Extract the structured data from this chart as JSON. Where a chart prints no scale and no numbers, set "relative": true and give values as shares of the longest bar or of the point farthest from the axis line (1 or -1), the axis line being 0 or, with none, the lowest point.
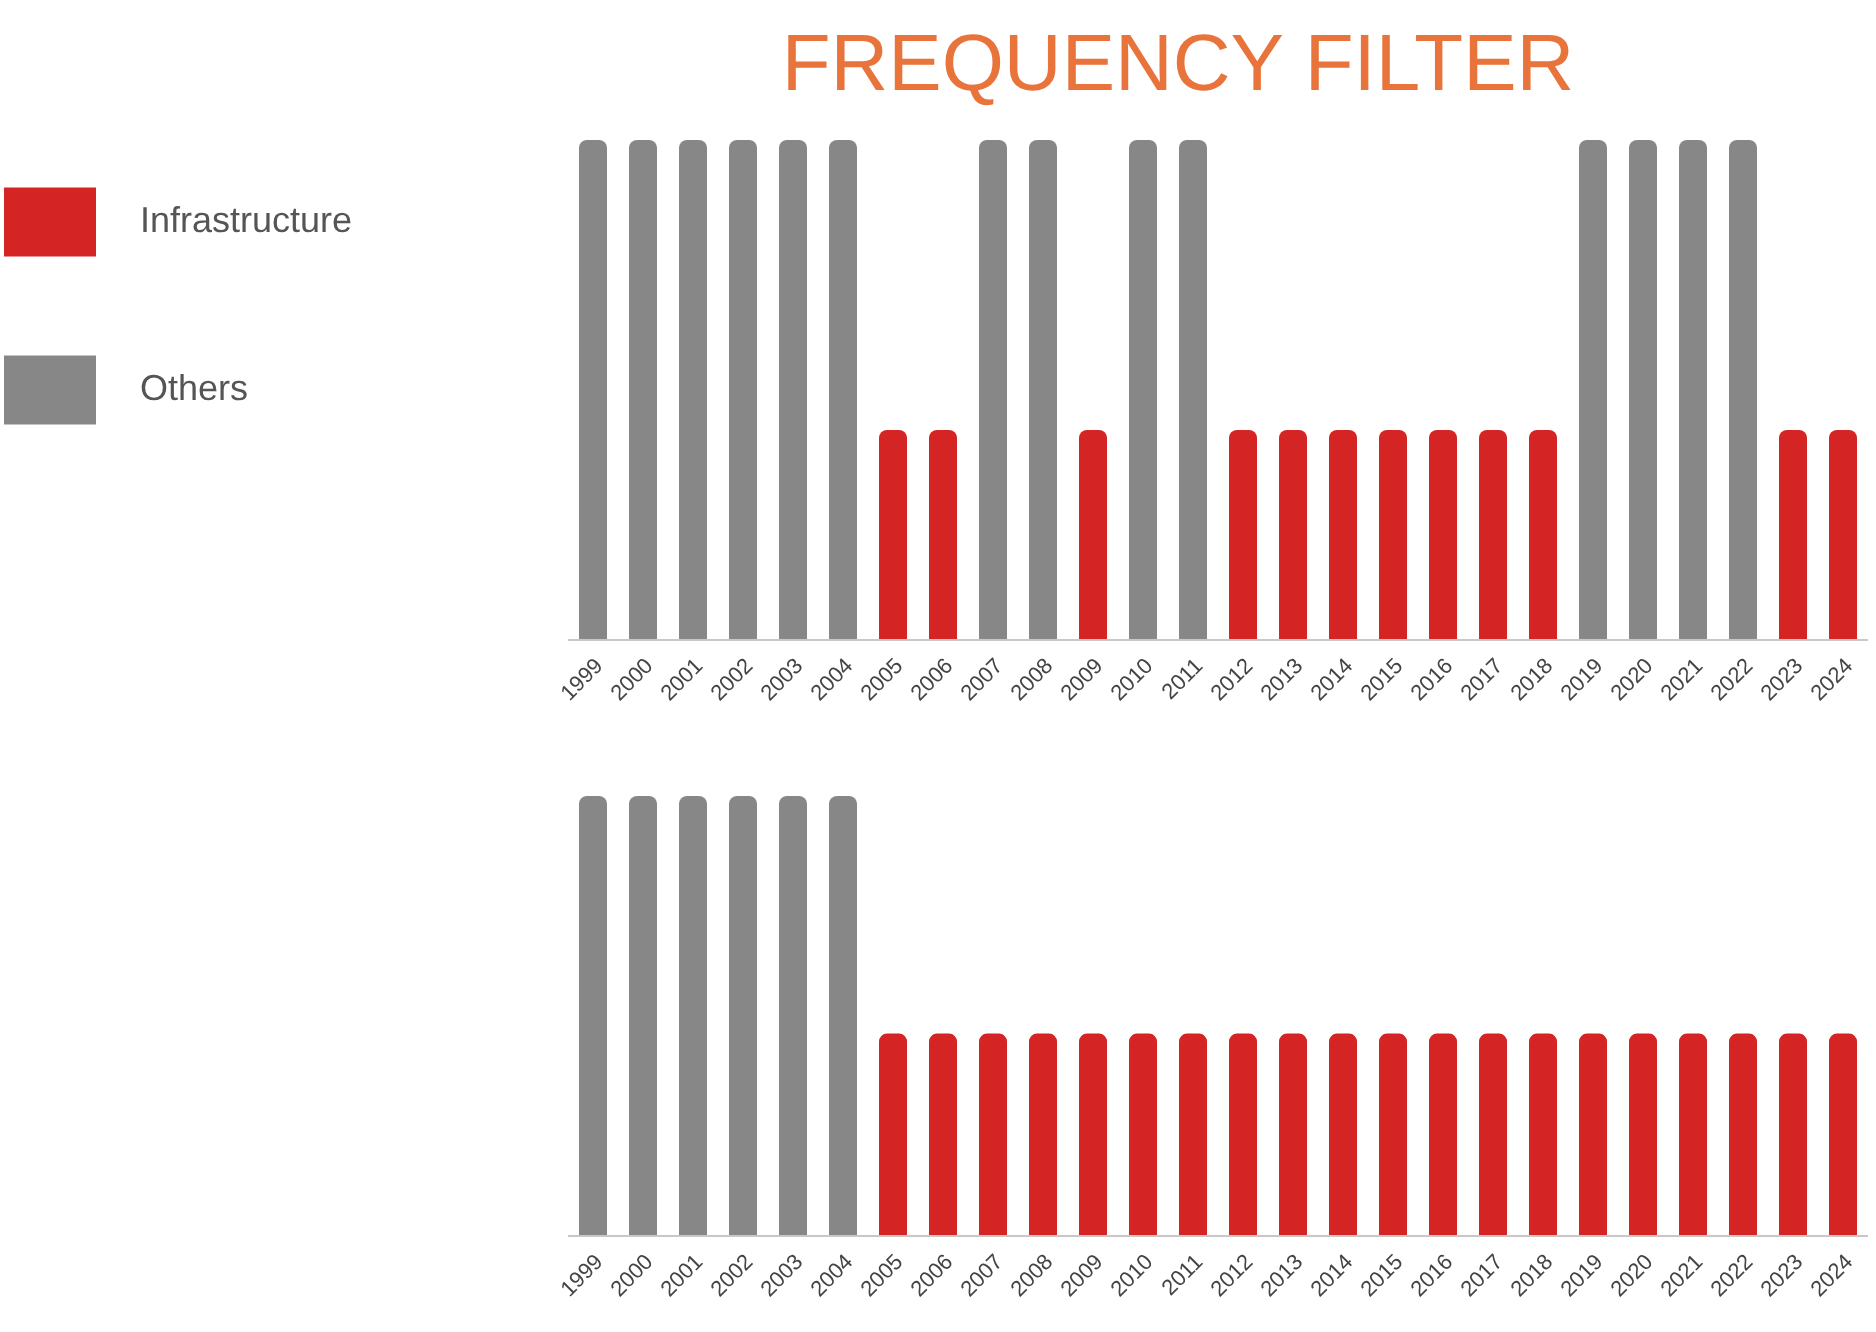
{
  "chart_data": [
    {
      "type": "bar",
      "title": "FREQUENCY FILTER",
      "relative": true,
      "stacked": true,
      "legend": "top left",
      "categories": [
        "1999",
        "2000",
        "2001",
        "2002",
        "2003",
        "2004",
        "2005",
        "2006",
        "2007",
        "2008",
        "2009",
        "2010",
        "2011",
        "2012",
        "2013",
        "2014",
        "2015",
        "2016",
        "2017",
        "2018",
        "2019",
        "2020",
        "2021",
        "2022",
        "2023",
        "2024"
      ],
      "series": [
        {
          "name": "Infrastructure",
          "color": "#d42424",
          "values": [
            null,
            null,
            null,
            null,
            null,
            null,
            0.42,
            0.42,
            null,
            null,
            0.42,
            null,
            null,
            0.42,
            0.42,
            0.42,
            0.42,
            0.42,
            0.42,
            0.42,
            null,
            null,
            null,
            null,
            0.42,
            0.42
          ]
        },
        {
          "name": "Others",
          "color": "#878787",
          "values": [
            1,
            1,
            1,
            1,
            1,
            1,
            null,
            null,
            1,
            1,
            null,
            1,
            1,
            null,
            null,
            null,
            null,
            null,
            null,
            null,
            1,
            1,
            1,
            1,
            null,
            null
          ]
        }
      ]
    },
    {
      "type": "bar",
      "relative": true,
      "categories": [
        "1999",
        "2000",
        "2001",
        "2002",
        "2003",
        "2004",
        "2005",
        "2006",
        "2007",
        "2008",
        "2009",
        "2010",
        "2011",
        "2012",
        "2013",
        "2014",
        "2015",
        "2016",
        "2017",
        "2018",
        "2019",
        "2020",
        "2021",
        "2022",
        "2023",
        "2024"
      ],
      "values": [
        1,
        1,
        1,
        1,
        1,
        1,
        0.46,
        0.46,
        0.46,
        0.46,
        0.46,
        0.46,
        0.46,
        0.46,
        0.46,
        0.46,
        0.46,
        0.46,
        0.46,
        0.46,
        0.46,
        0.46,
        0.46,
        0.46,
        0.46,
        0.46
      ],
      "colors": [
        "#878787",
        "#878787",
        "#878787",
        "#878787",
        "#878787",
        "#878787",
        "#d42424",
        "#d42424",
        "#d42424",
        "#d42424",
        "#d42424",
        "#d42424",
        "#d42424",
        "#d42424",
        "#d42424",
        "#d42424",
        "#d42424",
        "#d42424",
        "#d42424",
        "#d42424",
        "#d42424",
        "#d42424",
        "#d42424",
        "#d42424",
        "#d42424",
        "#d42424"
      ]
    }
  ]
}
